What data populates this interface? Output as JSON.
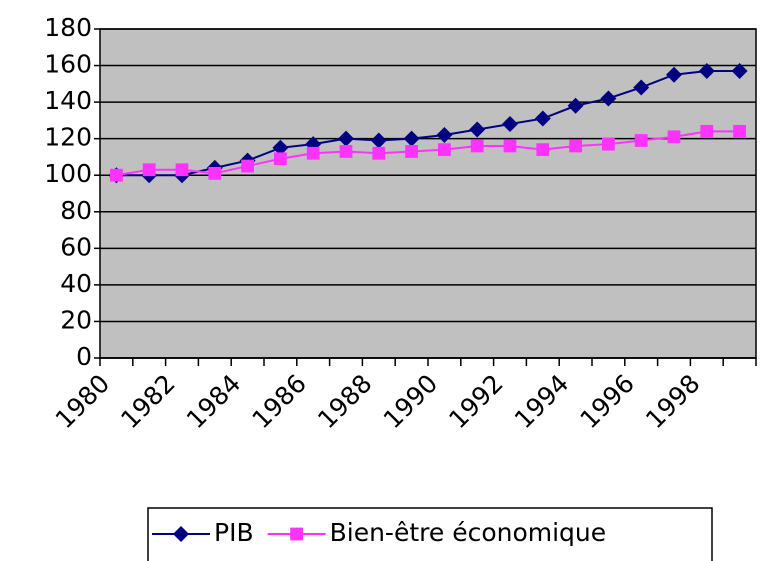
{
  "chart_data": {
    "type": "line",
    "categories": [
      "1980",
      null,
      "1982",
      null,
      "1984",
      null,
      "1986",
      null,
      "1988",
      null,
      "1990",
      null,
      "1992",
      null,
      "1994",
      null,
      "1996",
      null,
      "1998",
      null
    ],
    "series": [
      {
        "name": "PIB",
        "color": "#000080",
        "marker": "diamond",
        "values": [
          100,
          100,
          100,
          104,
          108,
          115,
          117,
          120,
          119,
          120,
          122,
          125,
          128,
          131,
          138,
          142,
          148,
          155,
          157,
          157
        ]
      },
      {
        "name": "Bien-être économique",
        "color": "#ff33ff",
        "marker": "square",
        "values": [
          100,
          103,
          103,
          101,
          105,
          109,
          112,
          113,
          112,
          113,
          114,
          116,
          116,
          114,
          116,
          117,
          119,
          121,
          124,
          124
        ]
      }
    ],
    "ylim": [
      0,
      180
    ],
    "yticks": [
      0,
      20,
      40,
      60,
      80,
      100,
      120,
      140,
      160,
      180
    ],
    "grid": true,
    "legend": "bottom",
    "background": "#c0c0c0"
  }
}
